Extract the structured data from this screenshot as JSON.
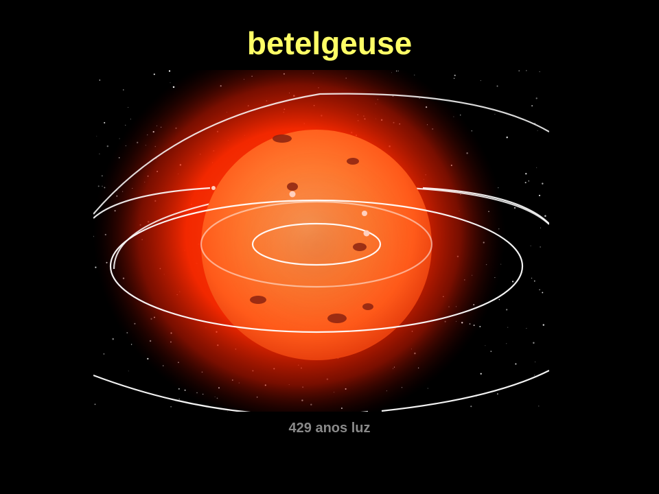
{
  "slide": {
    "title": "betelgeuse",
    "caption": "429 anos luz"
  },
  "colors": {
    "background": "#000000",
    "title": "#ffff66",
    "caption": "#8a8a8a",
    "star_core": "#ff7a2e",
    "star_glow": "#ff2a00"
  },
  "image": {
    "subject": "red supergiant star with planetary orbit rings",
    "icon": "star-illustration"
  }
}
